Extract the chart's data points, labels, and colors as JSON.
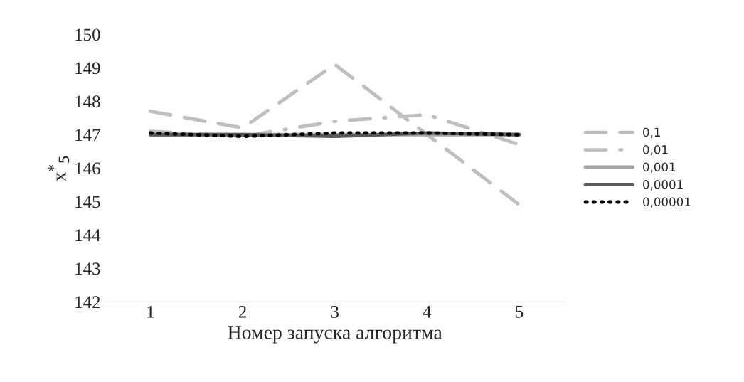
{
  "chart_data": {
    "type": "line",
    "xlabel": "Номер запуска алгоритма",
    "ylabel": "x$^{*}$$_{5}$",
    "categories": [
      "1",
      "2",
      "3",
      "4",
      "5"
    ],
    "series": [
      {
        "name": "0,1",
        "color": "#bfbfbf",
        "line_style": "dashed",
        "values": [
          147.7,
          147.2,
          149.1,
          147.0,
          144.9
        ]
      },
      {
        "name": "0,01",
        "color": "#bfbfbf",
        "line_style": "dashdot",
        "values": [
          147.1,
          146.95,
          147.4,
          147.6,
          146.7
        ]
      },
      {
        "name": "0,001",
        "color": "#a6a6a6",
        "line_style": "solid",
        "values": [
          147.0,
          147.0,
          147.0,
          147.0,
          147.0
        ]
      },
      {
        "name": "0,0001",
        "color": "#595959",
        "line_style": "solid",
        "values": [
          147.0,
          147.0,
          146.95,
          147.05,
          147.0
        ]
      },
      {
        "name": "0,00001",
        "color": "#000000",
        "line_style": "dotted",
        "values": [
          147.05,
          146.95,
          147.05,
          147.05,
          147.0
        ]
      }
    ],
    "ylim": [
      142,
      150
    ],
    "yticks": [
      142,
      143,
      144,
      145,
      146,
      147,
      148,
      149,
      150
    ],
    "grid": false,
    "legend": "right",
    "marker": "none"
  }
}
